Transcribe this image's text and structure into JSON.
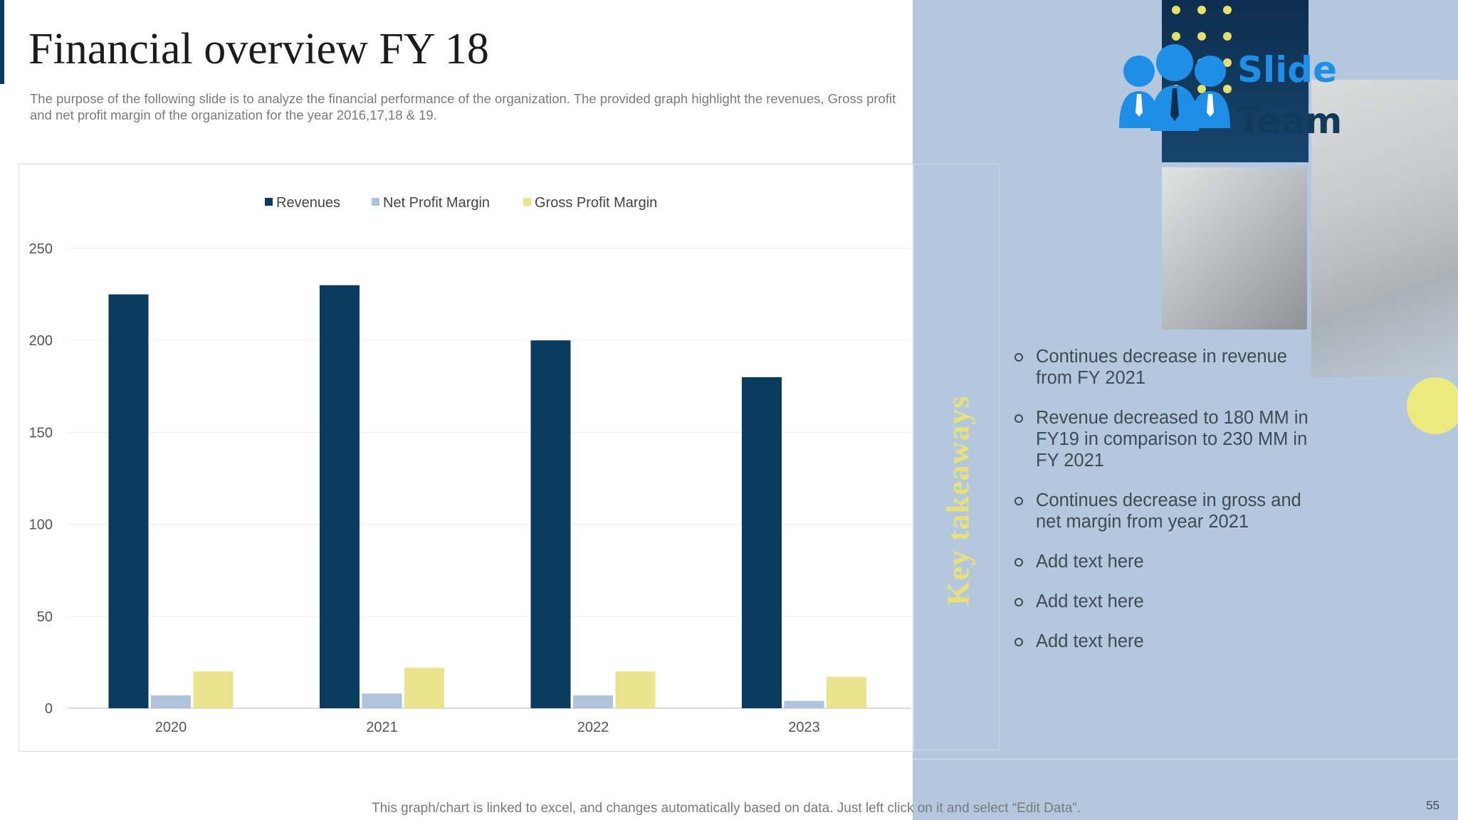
{
  "slide": {
    "title": "Financial overview FY 18",
    "subtitle": "The purpose of the following slide is to analyze the financial performance of the organization. The provided graph highlight the revenues, Gross profit and net profit margin of the organization for the year 2016,17,18 & 19.",
    "footnote": "This graph/chart is linked to excel,  and changes automatically based on data. Just left click on it and select “Edit Data”.",
    "page_number": "55"
  },
  "logo": {
    "line1": "Slide",
    "line2": "Team"
  },
  "takeaways": {
    "label": "Key takeaways",
    "items": [
      "Continues decrease in revenue from FY 2021",
      "Revenue  decreased to 180 MM in FY19 in comparison to 230 MM in FY 2021",
      "Continues decrease in gross and net margin from year 2021",
      "Add text here",
      "Add text here",
      "Add text here"
    ]
  },
  "colors": {
    "revenues": "#0b3a5f",
    "net_profit_margin": "#afc3da",
    "gross_profit_margin": "#e8e38c",
    "panel": "#b3c7dd"
  },
  "chart_data": {
    "type": "bar",
    "title": "",
    "xlabel": "",
    "ylabel": "",
    "categories": [
      "2020",
      "2021",
      "2022",
      "2023"
    ],
    "series": [
      {
        "name": "Revenues",
        "values": [
          225,
          230,
          200,
          180
        ]
      },
      {
        "name": "Net Profit Margin",
        "values": [
          7,
          8,
          7,
          4
        ]
      },
      {
        "name": "Gross Profit Margin",
        "values": [
          20,
          22,
          20,
          17
        ]
      }
    ],
    "ylim": [
      0,
      250
    ],
    "yticks": [
      0,
      50,
      100,
      150,
      200,
      250
    ],
    "grid": true,
    "legend_position": "top-center"
  }
}
